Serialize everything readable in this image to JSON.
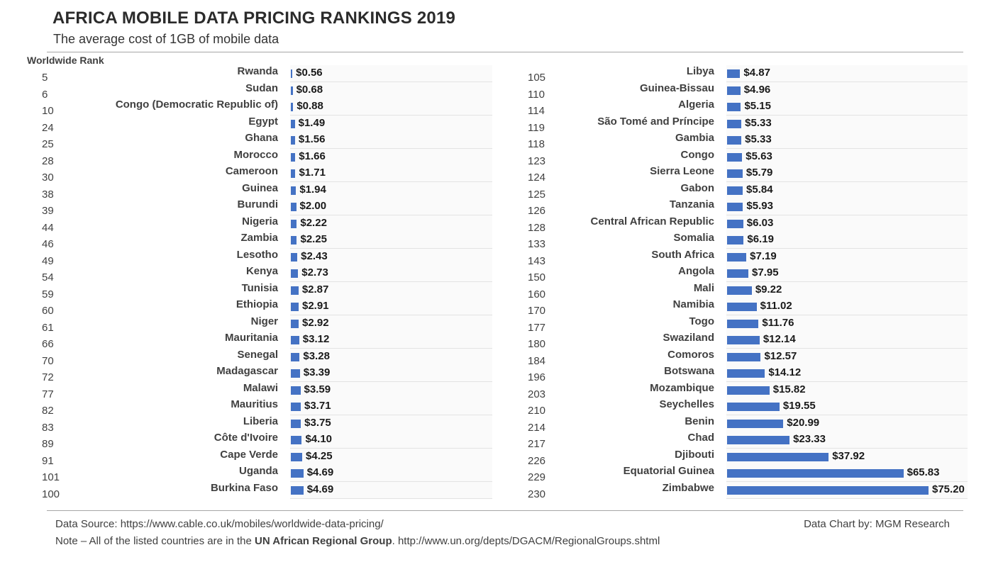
{
  "header": {
    "title": "AFRICA MOBILE DATA PRICING RANKINGS 2019",
    "subtitle": "The average cost of 1GB of mobile data",
    "rank_label": "Worldwide Rank"
  },
  "footer": {
    "source": "Data Source: https://www.cable.co.uk/mobiles/worldwide-data-pricing/",
    "credit": "Data Chart by: MGM Research",
    "note_prefix": "Note – All of the listed countries are in the ",
    "note_bold": "UN African Regional Group",
    "note_suffix": ". http://www.un.org/depts/DGACM/RegionalGroups.shtml"
  },
  "colors": {
    "bar": "#4472c4"
  },
  "chart_data": [
    {
      "type": "bar",
      "orientation": "horizontal",
      "title": "AFRICA MOBILE DATA PRICING RANKINGS 2019",
      "ylabel": "Worldwide Rank",
      "xlim": [
        0,
        75.2
      ],
      "categories": [
        "Rwanda",
        "Sudan",
        "Congo (Democratic Republic of)",
        "Egypt",
        "Ghana",
        "Morocco",
        "Cameroon",
        "Guinea",
        "Burundi",
        "Nigeria",
        "Zambia",
        "Lesotho",
        "Kenya",
        "Tunisia",
        "Ethiopia",
        "Niger",
        "Mauritania",
        "Senegal",
        "Madagascar",
        "Malawi",
        "Mauritius",
        "Liberia",
        "Côte d'Ivoire",
        "Cape Verde",
        "Uganda",
        "Burkina Faso"
      ],
      "ranks": [
        "5",
        "6",
        "10",
        "24",
        "25",
        "28",
        "30",
        "38",
        "39",
        "44",
        "46",
        "49",
        "54",
        "59",
        "60",
        "61",
        "66",
        "70",
        "72",
        "77",
        "82",
        "83",
        "89",
        "91",
        "101",
        "100"
      ],
      "values": [
        0.56,
        0.68,
        0.88,
        1.49,
        1.56,
        1.66,
        1.71,
        1.94,
        2.0,
        2.22,
        2.25,
        2.43,
        2.73,
        2.87,
        2.91,
        2.92,
        3.12,
        3.28,
        3.39,
        3.59,
        3.71,
        3.75,
        4.1,
        4.25,
        4.69,
        4.69
      ],
      "labels": [
        "$0.56",
        "$0.68",
        "$0.88",
        "$1.49",
        "$1.56",
        "$1.66",
        "$1.71",
        "$1.94",
        "$2.00",
        "$2.22",
        "$2.25",
        "$2.43",
        "$2.73",
        "$2.87",
        "$2.91",
        "$2.92",
        "$3.12",
        "$3.28",
        "$3.39",
        "$3.59",
        "$3.71",
        "$3.75",
        "$4.10",
        "$4.25",
        "$4.69",
        "$4.69"
      ]
    },
    {
      "type": "bar",
      "orientation": "horizontal",
      "xlim": [
        0,
        75.2
      ],
      "categories": [
        "Libya",
        "Guinea-Bissau",
        "Algeria",
        "São Tomé and Príncipe",
        "Gambia",
        "Congo",
        "Sierra Leone",
        "Gabon",
        "Tanzania",
        "Central African Republic",
        "Somalia",
        "South Africa",
        "Angola",
        "Mali",
        "Namibia",
        "Togo",
        "Swaziland",
        "Comoros",
        "Botswana",
        "Mozambique",
        "Seychelles",
        "Benin",
        "Chad",
        "Djibouti",
        "Equatorial Guinea",
        "Zimbabwe"
      ],
      "ranks": [
        "105",
        "110",
        "114",
        "119",
        "118",
        "123",
        "124",
        "125",
        "126",
        "128",
        "133",
        "143",
        "150",
        "160",
        "170",
        "177",
        "180",
        "184",
        "196",
        "203",
        "210",
        "214",
        "217",
        "226",
        "229",
        "230"
      ],
      "values": [
        4.87,
        4.96,
        5.15,
        5.33,
        5.33,
        5.63,
        5.79,
        5.84,
        5.93,
        6.03,
        6.19,
        7.19,
        7.95,
        9.22,
        11.02,
        11.76,
        12.14,
        12.57,
        14.12,
        15.82,
        19.55,
        20.99,
        23.33,
        37.92,
        65.83,
        75.2
      ],
      "labels": [
        "$4.87",
        "$4.96",
        "$5.15",
        "$5.33",
        "$5.33",
        "$5.63",
        "$5.79",
        "$5.84",
        "$5.93",
        "$6.03",
        "$6.19",
        "$7.19",
        "$7.95",
        "$9.22",
        "$11.02",
        "$11.76",
        "$12.14",
        "$12.57",
        "$14.12",
        "$15.82",
        "$19.55",
        "$20.99",
        "$23.33",
        "$37.92",
        "$65.83",
        "$75.20"
      ]
    }
  ]
}
